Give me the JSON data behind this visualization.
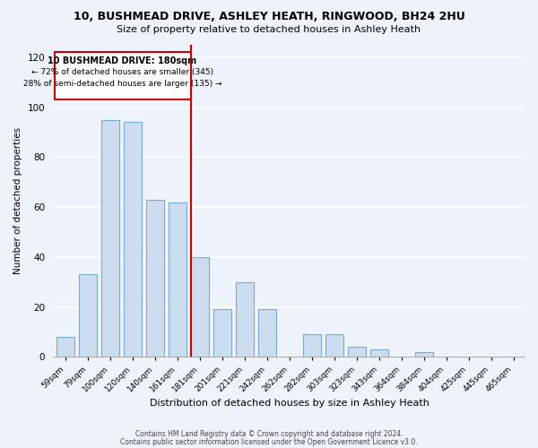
{
  "title1": "10, BUSHMEAD DRIVE, ASHLEY HEATH, RINGWOOD, BH24 2HU",
  "title2": "Size of property relative to detached houses in Ashley Heath",
  "xlabel": "Distribution of detached houses by size in Ashley Heath",
  "ylabel": "Number of detached properties",
  "bar_labels": [
    "59sqm",
    "79sqm",
    "100sqm",
    "120sqm",
    "140sqm",
    "161sqm",
    "181sqm",
    "201sqm",
    "221sqm",
    "242sqm",
    "262sqm",
    "282sqm",
    "303sqm",
    "323sqm",
    "343sqm",
    "364sqm",
    "384sqm",
    "404sqm",
    "425sqm",
    "445sqm",
    "465sqm"
  ],
  "bar_values": [
    8,
    33,
    95,
    94,
    63,
    62,
    40,
    19,
    30,
    19,
    0,
    9,
    9,
    4,
    3,
    0,
    2,
    0,
    0,
    0,
    0
  ],
  "bar_color": "#ccddf0",
  "bar_edge_color": "#7aaad0",
  "highlight_line_color": "#cc0000",
  "highlight_bar_index": 6,
  "ylim": [
    0,
    125
  ],
  "yticks": [
    0,
    20,
    40,
    60,
    80,
    100,
    120
  ],
  "annotation_line1": "10 BUSHMEAD DRIVE: 180sqm",
  "annotation_line2": "← 72% of detached houses are smaller (345)",
  "annotation_line3": "28% of semi-detached houses are larger (135) →",
  "footer1": "Contains HM Land Registry data © Crown copyright and database right 2024.",
  "footer2": "Contains public sector information licensed under the Open Government Licence v3.0.",
  "background_color": "#eef2fa",
  "grid_color": "#ffffff"
}
